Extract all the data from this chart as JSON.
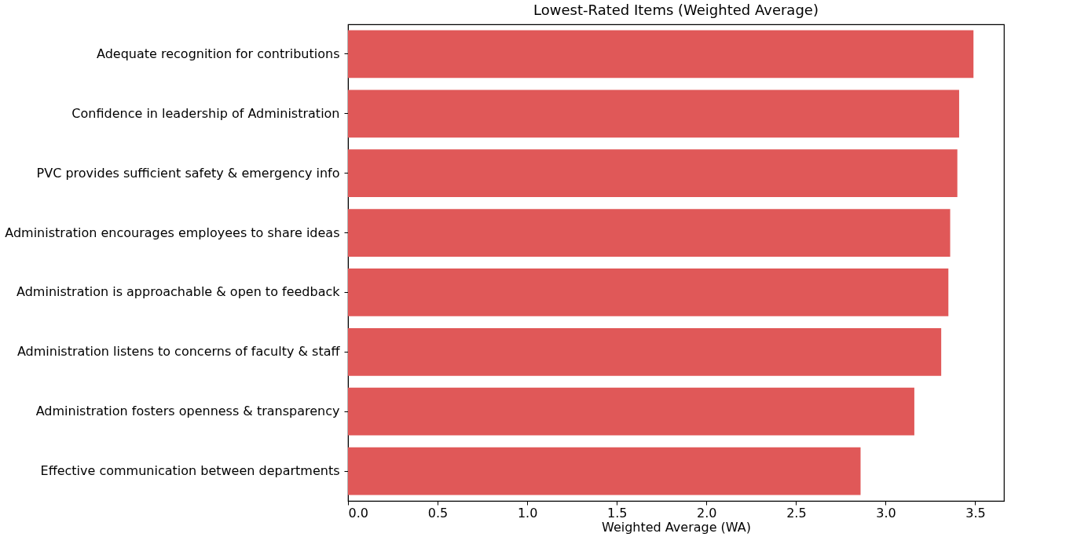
{
  "chart_data": {
    "type": "bar",
    "orientation": "horizontal",
    "title": "Lowest-Rated Items (Weighted Average)",
    "xlabel": "Weighted Average (WA)",
    "categories": [
      "Adequate recognition for contributions",
      "Confidence in leadership of Administration",
      "PVC provides sufficient safety & emergency info",
      "Administration encourages employees to share ideas",
      "Administration is approachable & open to feedback",
      "Administration listens to concerns of faculty & staff",
      "Administration fosters openness & transparency",
      "Effective communication between departments"
    ],
    "values": [
      3.49,
      3.41,
      3.4,
      3.36,
      3.35,
      3.31,
      3.16,
      2.86
    ],
    "color": "#e05858",
    "xlim": [
      0,
      3.66
    ],
    "xticks": [
      {
        "value": 0,
        "label": "0.0"
      },
      {
        "value": 0.5,
        "label": "0.5"
      },
      {
        "value": 1,
        "label": "1.0"
      },
      {
        "value": 1.5,
        "label": "1.5"
      },
      {
        "value": 2,
        "label": "2.0"
      },
      {
        "value": 2.5,
        "label": "2.5"
      },
      {
        "value": 3,
        "label": "3.0"
      },
      {
        "value": 3.5,
        "label": "3.5"
      }
    ],
    "grid": false
  }
}
